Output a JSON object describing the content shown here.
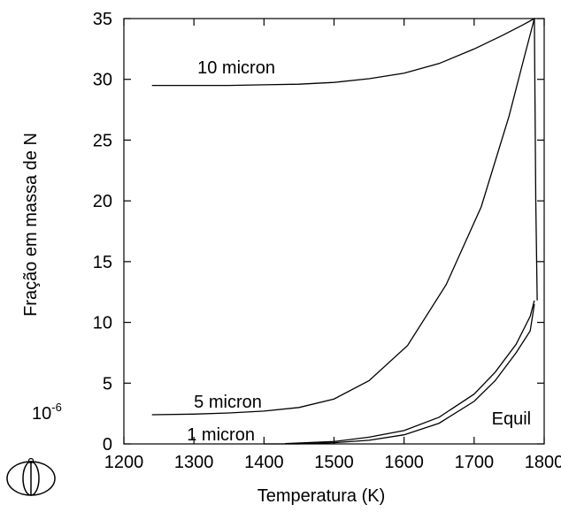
{
  "chart_data": {
    "type": "line",
    "title": "",
    "xlabel": "Temperatura (K)",
    "ylabel": "Fração em massa de N",
    "y_scale_note": "10-6",
    "xlim": [
      1200,
      1800
    ],
    "ylim": [
      0,
      35
    ],
    "xticks": [
      1200,
      1300,
      1400,
      1500,
      1600,
      1700,
      1800
    ],
    "yticks": [
      0,
      5,
      10,
      15,
      20,
      25,
      30,
      35
    ],
    "grid": false,
    "legend": "none",
    "series": [
      {
        "name": "10 micron",
        "label_at": [
          1305,
          30.5
        ],
        "x": [
          1240,
          1300,
          1350,
          1400,
          1450,
          1500,
          1550,
          1600,
          1650,
          1700,
          1740,
          1770,
          1786,
          1788,
          1790
        ],
        "y": [
          29.5,
          29.5,
          29.5,
          29.55,
          29.6,
          29.75,
          30.05,
          30.5,
          31.3,
          32.5,
          33.6,
          34.5,
          35,
          20,
          11.8
        ]
      },
      {
        "name": "5 micron",
        "label_at": [
          1300,
          3.0
        ],
        "x": [
          1240,
          1300,
          1350,
          1400,
          1450,
          1500,
          1550,
          1605,
          1660,
          1710,
          1750,
          1770,
          1786
        ],
        "y": [
          2.4,
          2.45,
          2.55,
          2.7,
          3.0,
          3.7,
          5.2,
          8.1,
          13.1,
          19.5,
          27.0,
          31.5,
          35
        ]
      },
      {
        "name": "1 micron",
        "label_at": [
          1290,
          0.3
        ],
        "x": [
          1430,
          1500,
          1550,
          1600,
          1650,
          1700,
          1730,
          1760,
          1780,
          1786
        ],
        "y": [
          0.02,
          0.2,
          0.55,
          1.1,
          2.2,
          4.1,
          5.9,
          8.2,
          10.5,
          11.8
        ]
      },
      {
        "name": "Equil",
        "label_at": [
          1725,
          1.6
        ],
        "x": [
          1400,
          1450,
          1500,
          1550,
          1600,
          1650,
          1700,
          1730,
          1760,
          1780,
          1786
        ],
        "y": [
          0.0,
          0.0,
          0.1,
          0.3,
          0.75,
          1.7,
          3.5,
          5.2,
          7.5,
          9.3,
          11.5
        ]
      }
    ]
  },
  "logo": {
    "icon": "thermo-calc-logo-icon"
  }
}
